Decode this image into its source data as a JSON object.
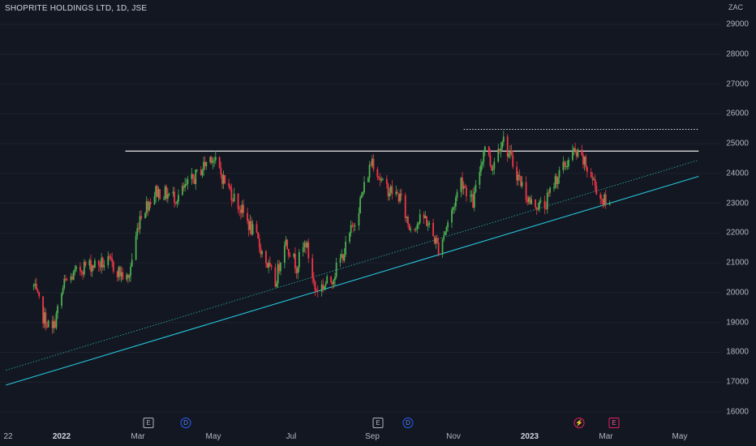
{
  "header": {
    "title": "SHOPRITE HOLDINGS LTD, 1D, JSE",
    "currency": "ZAC"
  },
  "colors": {
    "up": "#26a69a",
    "down": "#ef5350",
    "up_bar": "#4caf50",
    "down_bar": "#f23645",
    "resistance": "#ffffff",
    "support": "#26c6da",
    "channel": "#26a69a",
    "background": "#131722"
  },
  "price_axis": [
    "29000",
    "28000",
    "27000",
    "26000",
    "25000",
    "24000",
    "23000",
    "22000",
    "21000",
    "20000",
    "19000",
    "18000",
    "17000",
    "16000"
  ],
  "time_axis": [
    {
      "label": "22",
      "bold": false
    },
    {
      "label": "2022",
      "bold": true
    },
    {
      "label": "Mar",
      "bold": false
    },
    {
      "label": "May",
      "bold": false
    },
    {
      "label": "Jul",
      "bold": false
    },
    {
      "label": "Sep",
      "bold": false
    },
    {
      "label": "Nov",
      "bold": false
    },
    {
      "label": "2023",
      "bold": true
    },
    {
      "label": "Mar",
      "bold": false
    },
    {
      "label": "May",
      "bold": false
    }
  ],
  "markers": [
    {
      "type": "earnings",
      "glyph": "E"
    },
    {
      "type": "dividend",
      "glyph": "D"
    },
    {
      "type": "earnings",
      "glyph": "E"
    },
    {
      "type": "dividend",
      "glyph": "D"
    },
    {
      "type": "split",
      "glyph": "⚡"
    },
    {
      "type": "earnings-future",
      "glyph": "E"
    }
  ],
  "chart_data": {
    "type": "candlestick",
    "title": "SHOPRITE HOLDINGS LTD, 1D, JSE",
    "ylim": [
      15700,
      29600
    ],
    "interval": "1D",
    "anchors": [
      [
        "2021-12-13",
        20200
      ],
      [
        "2021-12-20",
        19200
      ],
      [
        "2021-12-27",
        18700
      ],
      [
        "2022-01-05",
        20300
      ],
      [
        "2022-01-20",
        20900
      ],
      [
        "2022-02-08",
        21000
      ],
      [
        "2022-02-22",
        20400
      ],
      [
        "2022-03-03",
        22600
      ],
      [
        "2022-03-15",
        23400
      ],
      [
        "2022-03-31",
        23200
      ],
      [
        "2022-04-14",
        23900
      ],
      [
        "2022-04-26",
        24600
      ],
      [
        "2022-05-05",
        23800
      ],
      [
        "2022-05-18",
        22800
      ],
      [
        "2022-05-30",
        21800
      ],
      [
        "2022-06-13",
        20300
      ],
      [
        "2022-06-20",
        21800
      ],
      [
        "2022-06-29",
        20900
      ],
      [
        "2022-07-06",
        21700
      ],
      [
        "2022-07-13",
        20100
      ],
      [
        "2022-07-25",
        20400
      ],
      [
        "2022-08-05",
        21500
      ],
      [
        "2022-08-15",
        22900
      ],
      [
        "2022-08-25",
        24500
      ],
      [
        "2022-09-02",
        23600
      ],
      [
        "2022-09-15",
        23200
      ],
      [
        "2022-09-22",
        22200
      ],
      [
        "2022-10-04",
        22500
      ],
      [
        "2022-10-14",
        21500
      ],
      [
        "2022-10-24",
        22700
      ],
      [
        "2022-10-31",
        23800
      ],
      [
        "2022-11-09",
        23000
      ],
      [
        "2022-11-18",
        25000
      ],
      [
        "2022-11-23",
        24200
      ],
      [
        "2022-12-01",
        25200
      ],
      [
        "2022-12-12",
        24000
      ],
      [
        "2022-12-22",
        23000
      ],
      [
        "2023-01-02",
        22900
      ],
      [
        "2023-01-10",
        23800
      ],
      [
        "2023-01-24",
        24700
      ],
      [
        "2023-01-31",
        24400
      ],
      [
        "2023-02-06",
        23900
      ],
      [
        "2023-02-13",
        23200
      ],
      [
        "2023-02-20",
        22900
      ]
    ],
    "annotations": [
      {
        "name": "resistance-line",
        "style": "solid",
        "color": "#ffffff",
        "from": [
          "2022-02-20",
          24750
        ],
        "to": [
          "2023-04-28",
          24750
        ]
      },
      {
        "name": "previous-high-line",
        "style": "dotted",
        "color": "#ffffff",
        "from": [
          "2022-11-02",
          25480
        ],
        "to": [
          "2023-04-28",
          25480
        ]
      },
      {
        "name": "support-trendline",
        "style": "solid",
        "color": "#26c6da",
        "from": [
          "2021-11-22",
          16900
        ],
        "to": [
          "2023-04-28",
          23900
        ]
      },
      {
        "name": "channel-trendline",
        "style": "dotted",
        "color": "#26a69a",
        "from": [
          "2021-11-22",
          17400
        ],
        "to": [
          "2023-04-28",
          24450
        ]
      }
    ]
  }
}
